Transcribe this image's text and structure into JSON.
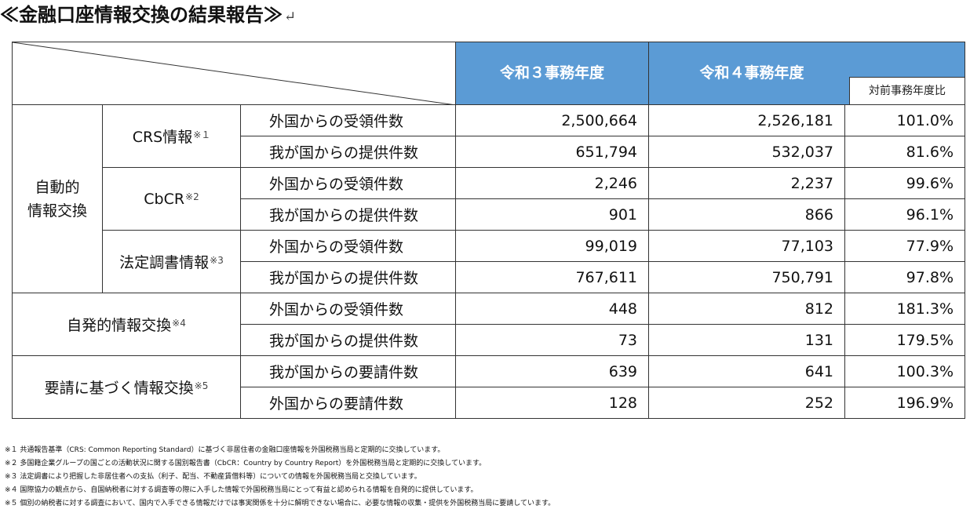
{
  "title": "≪金融口座情報交換の結果報告≫",
  "title_return_mark": "↵",
  "header": {
    "col_r3": "令和３事務年度",
    "col_r4": "令和４事務年度",
    "col_ratio": "対前事務年度比"
  },
  "groups": {
    "auto": "自動的\n情報交換",
    "crs": {
      "label": "CRS情報",
      "mark": "※１"
    },
    "cbcr": {
      "label": "CbCR",
      "mark": "※2"
    },
    "legal": {
      "label": "法定調書情報",
      "mark": "※3"
    },
    "spont": {
      "label": "自発的情報交換",
      "mark": "※4"
    },
    "request": {
      "label": "要請に基づく情報交換",
      "mark": "※5"
    }
  },
  "rows": [
    {
      "label": "外国からの受領件数",
      "r3": "2,500,664",
      "r4": "2,526,181",
      "ratio": "101.0%"
    },
    {
      "label": "我が国からの提供件数",
      "r3": "651,794",
      "r4": "532,037",
      "ratio": "81.6%"
    },
    {
      "label": "外国からの受領件数",
      "r3": "2,246",
      "r4": "2,237",
      "ratio": "99.6%"
    },
    {
      "label": "我が国からの提供件数",
      "r3": "901",
      "r4": "866",
      "ratio": "96.1%"
    },
    {
      "label": "外国からの受領件数",
      "r3": "99,019",
      "r4": "77,103",
      "ratio": "77.9%"
    },
    {
      "label": "我が国からの提供件数",
      "r3": "767,611",
      "r4": "750,791",
      "ratio": "97.8%"
    },
    {
      "label": "外国からの受領件数",
      "r3": "448",
      "r4": "812",
      "ratio": "181.3%"
    },
    {
      "label": "我が国からの提供件数",
      "r3": "73",
      "r4": "131",
      "ratio": "179.5%"
    },
    {
      "label": "我が国からの要請件数",
      "r3": "639",
      "r4": "641",
      "ratio": "100.3%"
    },
    {
      "label": "外国からの要請件数",
      "r3": "128",
      "r4": "252",
      "ratio": "196.9%"
    }
  ],
  "notes": [
    "※１ 共通報告基準（CRS: Common Reporting Standard）に基づく非居住者の金融口座情報を外国税務当局と定期的に交換しています。",
    "※２ 多国籍企業グループの国ごとの活動状況に関する国別報告書（CbCR：Country by Country Report）を外国税務当局と定期的に交換しています。",
    "※３ 法定調書により把握した非居住者への支払（利子、配当、不動産賃借料等）についての情報を外国税務当局と交換しています。",
    "※４ 国際協力の観点から、自国納税者に対する調査等の際に入手した情報で外国税務当局にとって有益と認められる情報を自発的に提供しています。",
    "※５ 個別の納税者に対する調査において、国内で入手できる情報だけでは事実関係を十分に解明できない場合に、必要な情報の収集・提供を外国税務当局に要請しています。"
  ]
}
